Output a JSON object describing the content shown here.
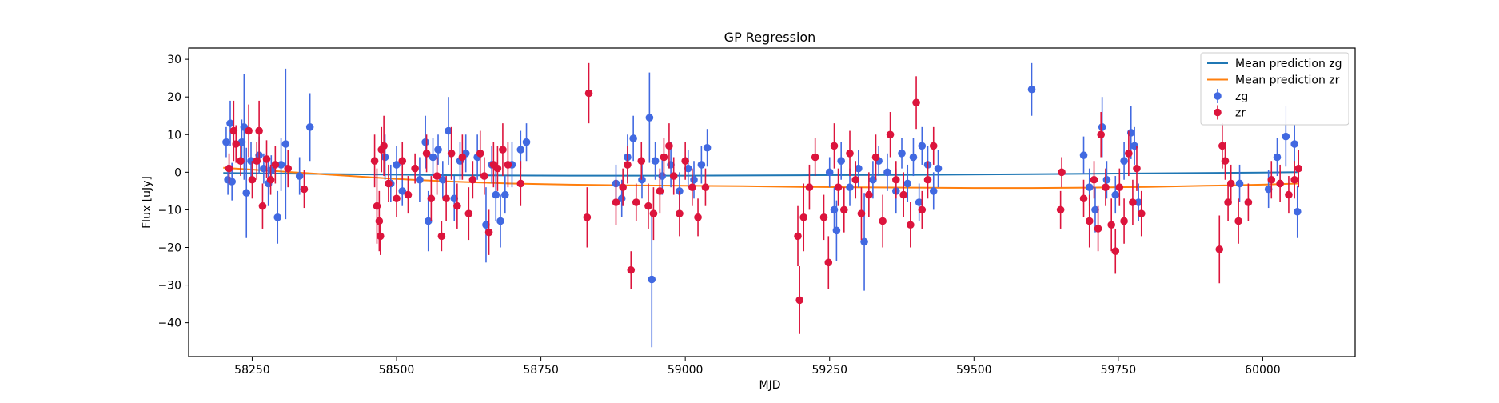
{
  "chart_data": {
    "type": "scatter",
    "title": "GP Regression",
    "xlabel": "MJD",
    "ylabel": "Flux [uJy]",
    "xlim": [
      58140,
      60160
    ],
    "ylim": [
      -49,
      33
    ],
    "xticks": [
      58250,
      58500,
      58750,
      59000,
      59250,
      59500,
      59750,
      60000
    ],
    "yticks": [
      -40,
      -30,
      -20,
      -10,
      0,
      10,
      20,
      30
    ],
    "grid": false,
    "legend_position": "top-right",
    "lines": [
      {
        "name": "Mean prediction zg",
        "color": "#1f77b4",
        "x": [
          58200,
          58400,
          58600,
          58800,
          59000,
          59200,
          59400,
          59600,
          59800,
          60000,
          60060
        ],
        "y": [
          -0.2,
          -0.5,
          -0.8,
          -0.9,
          -0.9,
          -0.8,
          -0.7,
          -0.5,
          -0.3,
          -0.1,
          0
        ]
      },
      {
        "name": "Mean prediction zr",
        "color": "#ff7f0e",
        "x": [
          58200,
          58300,
          58400,
          58500,
          58600,
          58700,
          58800,
          58900,
          59000,
          59100,
          59200,
          59300,
          59400,
          59500,
          59600,
          59700,
          59800,
          59900,
          60000,
          60060
        ],
        "y": [
          1.2,
          0.2,
          -0.8,
          -1.8,
          -2.5,
          -3.0,
          -3.3,
          -3.5,
          -3.6,
          -3.7,
          -3.9,
          -4.0,
          -4.1,
          -4.2,
          -4.2,
          -4.1,
          -3.9,
          -3.6,
          -3.3,
          -3.0
        ]
      }
    ],
    "series": [
      {
        "name": "zg",
        "color": "#4169e1",
        "points": [
          [
            58205,
            8,
            4
          ],
          [
            58208,
            -2,
            4
          ],
          [
            58212,
            13,
            6
          ],
          [
            58215,
            -2.5,
            5
          ],
          [
            58232,
            8,
            6
          ],
          [
            58236,
            12,
            14
          ],
          [
            58240,
            -5.5,
            12
          ],
          [
            58248,
            3,
            5
          ],
          [
            58262,
            4.5,
            5
          ],
          [
            58270,
            1,
            4
          ],
          [
            58278,
            -3,
            6
          ],
          [
            58283,
            0.5,
            4
          ],
          [
            58294,
            -12,
            7
          ],
          [
            58300,
            2,
            7
          ],
          [
            58308,
            7.5,
            20
          ],
          [
            58332,
            -1,
            5
          ],
          [
            58350,
            12,
            9
          ],
          [
            58480,
            4,
            6
          ],
          [
            58490,
            -3,
            5
          ],
          [
            58500,
            2,
            5
          ],
          [
            58510,
            -5,
            4
          ],
          [
            58540,
            -2,
            6
          ],
          [
            58550,
            8,
            7
          ],
          [
            58555,
            -13,
            8
          ],
          [
            58563,
            4,
            5
          ],
          [
            58572,
            6,
            4
          ],
          [
            58580,
            -2,
            5
          ],
          [
            58590,
            11,
            9
          ],
          [
            58600,
            -7,
            6
          ],
          [
            58610,
            3,
            5
          ],
          [
            58620,
            5,
            5
          ],
          [
            58640,
            4,
            6
          ],
          [
            58655,
            -14,
            10
          ],
          [
            58665,
            2,
            5
          ],
          [
            58672,
            -6,
            7
          ],
          [
            58680,
            -13,
            7
          ],
          [
            58688,
            -6,
            5
          ],
          [
            58700,
            2,
            6
          ],
          [
            58715,
            6,
            5
          ],
          [
            58725,
            8,
            5
          ],
          [
            58880,
            -3,
            5
          ],
          [
            58890,
            -7,
            5
          ],
          [
            58900,
            4,
            6
          ],
          [
            58910,
            9,
            6
          ],
          [
            58925,
            -2,
            5
          ],
          [
            58938,
            14.5,
            12
          ],
          [
            58942,
            -28.5,
            18
          ],
          [
            58948,
            3,
            5
          ],
          [
            58960,
            -1,
            5
          ],
          [
            58975,
            2,
            6
          ],
          [
            58990,
            -5,
            5
          ],
          [
            59005,
            1,
            5
          ],
          [
            59015,
            -2,
            5
          ],
          [
            59028,
            2,
            5
          ],
          [
            59038,
            6.5,
            5
          ],
          [
            59250,
            0,
            4
          ],
          [
            59258,
            -10,
            6
          ],
          [
            59262,
            -15.5,
            8
          ],
          [
            59270,
            3,
            5
          ],
          [
            59285,
            -4,
            5
          ],
          [
            59300,
            1,
            5
          ],
          [
            59310,
            -18.5,
            13
          ],
          [
            59325,
            -2,
            5
          ],
          [
            59335,
            3,
            4
          ],
          [
            59350,
            0,
            5
          ],
          [
            59365,
            -5,
            6
          ],
          [
            59375,
            5,
            4
          ],
          [
            59385,
            -3,
            5
          ],
          [
            59395,
            4,
            5
          ],
          [
            59405,
            -8,
            5
          ],
          [
            59410,
            7,
            5
          ],
          [
            59420,
            2,
            5
          ],
          [
            59430,
            -5,
            5
          ],
          [
            59438,
            1,
            5
          ],
          [
            59600,
            22,
            7
          ],
          [
            59690,
            4.5,
            5
          ],
          [
            59700,
            -4,
            5
          ],
          [
            59710,
            -10,
            6
          ],
          [
            59722,
            12,
            8
          ],
          [
            59730,
            -2,
            5
          ],
          [
            59745,
            -6,
            5
          ],
          [
            59760,
            3,
            5
          ],
          [
            59772,
            10.5,
            7
          ],
          [
            59778,
            7,
            5
          ],
          [
            59785,
            -8,
            5
          ],
          [
            59960,
            -3,
            5
          ],
          [
            60010,
            -4.5,
            5
          ],
          [
            60025,
            4,
            5
          ],
          [
            60040,
            9.5,
            8
          ],
          [
            60055,
            7.5,
            5
          ],
          [
            60060,
            -10.5,
            7
          ]
        ]
      },
      {
        "name": "zr",
        "color": "#dc143c",
        "points": [
          [
            58210,
            1,
            4
          ],
          [
            58218,
            11,
            8
          ],
          [
            58222,
            7.5,
            5
          ],
          [
            58230,
            3,
            4
          ],
          [
            58244,
            11,
            7
          ],
          [
            58250,
            -2,
            5
          ],
          [
            58258,
            3,
            5
          ],
          [
            58262,
            11,
            8
          ],
          [
            58268,
            -9,
            6
          ],
          [
            58275,
            3.5,
            5
          ],
          [
            58282,
            -2,
            4
          ],
          [
            58290,
            2,
            5
          ],
          [
            58312,
            1,
            5
          ],
          [
            58340,
            -4.5,
            5
          ],
          [
            58462,
            3,
            7
          ],
          [
            58466,
            -9,
            10
          ],
          [
            58470,
            -13,
            8
          ],
          [
            58472,
            -17,
            5
          ],
          [
            58474,
            6,
            6
          ],
          [
            58478,
            7,
            8
          ],
          [
            58486,
            -3,
            5
          ],
          [
            58500,
            -7,
            5
          ],
          [
            58510,
            3,
            5
          ],
          [
            58520,
            -6,
            5
          ],
          [
            58532,
            1,
            4
          ],
          [
            58552,
            5,
            5
          ],
          [
            58560,
            -7,
            6
          ],
          [
            58570,
            -1,
            5
          ],
          [
            58578,
            -17,
            4
          ],
          [
            58586,
            -7,
            6
          ],
          [
            58595,
            5,
            7
          ],
          [
            58605,
            -9,
            6
          ],
          [
            58614,
            4,
            6
          ],
          [
            58625,
            -11,
            7
          ],
          [
            58632,
            -2,
            5
          ],
          [
            58645,
            5,
            6
          ],
          [
            58652,
            -1,
            5
          ],
          [
            58660,
            -16,
            6
          ],
          [
            58668,
            2,
            6
          ],
          [
            58675,
            1,
            6
          ],
          [
            58684,
            6,
            7
          ],
          [
            58693,
            2,
            6
          ],
          [
            58715,
            -3,
            6
          ],
          [
            58830,
            -12,
            8
          ],
          [
            58833,
            21,
            8
          ],
          [
            58880,
            -8,
            6
          ],
          [
            58892,
            -4,
            5
          ],
          [
            58900,
            2,
            5
          ],
          [
            58906,
            -26,
            5
          ],
          [
            58915,
            -8,
            5
          ],
          [
            58924,
            3,
            5
          ],
          [
            58936,
            -9,
            6
          ],
          [
            58945,
            -11,
            7
          ],
          [
            58956,
            -5,
            6
          ],
          [
            58963,
            4,
            5
          ],
          [
            58972,
            7,
            6
          ],
          [
            58980,
            -1,
            5
          ],
          [
            58990,
            -11,
            6
          ],
          [
            59000,
            3,
            5
          ],
          [
            59012,
            -4,
            5
          ],
          [
            59022,
            -12,
            5
          ],
          [
            59035,
            -4,
            5
          ],
          [
            59195,
            -17,
            8
          ],
          [
            59198,
            -34,
            9
          ],
          [
            59205,
            -12,
            9
          ],
          [
            59215,
            -4,
            6
          ],
          [
            59225,
            4,
            5
          ],
          [
            59240,
            -12,
            6
          ],
          [
            59248,
            -24,
            7
          ],
          [
            59258,
            7,
            6
          ],
          [
            59265,
            -4,
            5
          ],
          [
            59275,
            -10,
            6
          ],
          [
            59285,
            5,
            6
          ],
          [
            59295,
            -2,
            5
          ],
          [
            59305,
            -11,
            7
          ],
          [
            59318,
            -6,
            6
          ],
          [
            59330,
            4,
            6
          ],
          [
            59342,
            -13,
            7
          ],
          [
            59355,
            10,
            6
          ],
          [
            59365,
            -2,
            5
          ],
          [
            59378,
            -6,
            6
          ],
          [
            59390,
            -14,
            6
          ],
          [
            59400,
            18.5,
            7
          ],
          [
            59410,
            -10,
            5
          ],
          [
            59420,
            -2,
            5
          ],
          [
            59430,
            7,
            5
          ],
          [
            59650,
            -10,
            5
          ],
          [
            59652,
            0,
            4
          ],
          [
            59690,
            -7,
            5
          ],
          [
            59700,
            -13,
            7
          ],
          [
            59708,
            -2,
            5
          ],
          [
            59715,
            -15,
            6
          ],
          [
            59720,
            10,
            6
          ],
          [
            59728,
            -4,
            5
          ],
          [
            59738,
            -14,
            7
          ],
          [
            59745,
            -21,
            6
          ],
          [
            59752,
            -4,
            5
          ],
          [
            59760,
            -13,
            6
          ],
          [
            59768,
            5,
            6
          ],
          [
            59775,
            -8,
            6
          ],
          [
            59782,
            1,
            6
          ],
          [
            59790,
            -11,
            6
          ],
          [
            59925,
            -20.5,
            9
          ],
          [
            59930,
            7,
            6
          ],
          [
            59935,
            3,
            5
          ],
          [
            59940,
            -8,
            5
          ],
          [
            59945,
            -3,
            5
          ],
          [
            59958,
            -13,
            6
          ],
          [
            59975,
            -8,
            5
          ],
          [
            60015,
            -2,
            5
          ],
          [
            60030,
            -3,
            5
          ],
          [
            60045,
            -6,
            5
          ],
          [
            60055,
            -2,
            5
          ],
          [
            60062,
            1,
            5
          ]
        ]
      }
    ]
  }
}
